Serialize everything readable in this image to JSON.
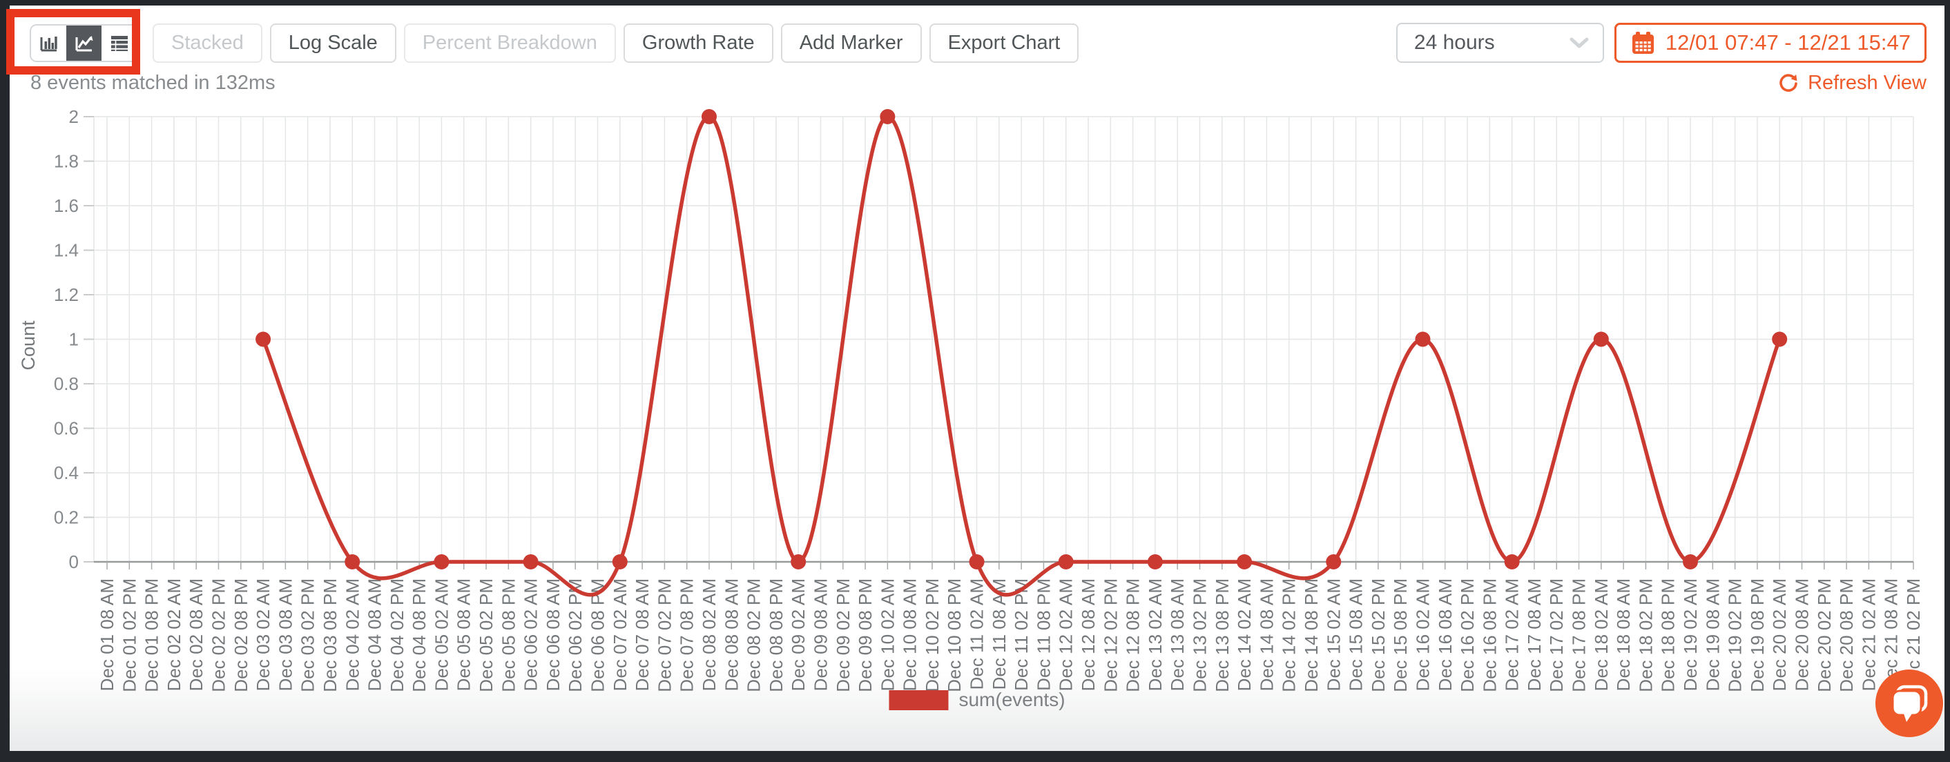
{
  "colors": {
    "accent_orange": "#ee5a29",
    "annotation_red": "#e8371d",
    "chart_red": "#cb3a31",
    "active_segment": "#54585d"
  },
  "toolbar": {
    "chart_type_buttons": [
      {
        "icon": "bar-chart-icon",
        "active": false
      },
      {
        "icon": "line-chart-icon",
        "active": true
      },
      {
        "icon": "table-icon",
        "active": false
      }
    ],
    "buttons": [
      {
        "label": "Stacked",
        "disabled": true
      },
      {
        "label": "Log Scale",
        "disabled": false
      },
      {
        "label": "Percent Breakdown",
        "disabled": true
      },
      {
        "label": "Growth Rate",
        "disabled": false
      },
      {
        "label": "Add Marker",
        "disabled": false
      },
      {
        "label": "Export Chart",
        "disabled": false
      }
    ],
    "time_range_select": {
      "value": "24 hours",
      "icon": "chevron-down-icon"
    },
    "date_range_button": {
      "label": "12/01 07:47 - 12/21 15:47",
      "icon": "calendar-icon"
    }
  },
  "status_bar": {
    "matched_text": "8 events matched in 132ms",
    "refresh_label": "Refresh View",
    "refresh_icon": "refresh-icon"
  },
  "chart_data": {
    "type": "line",
    "title": "",
    "xlabel": "",
    "ylabel": "Count",
    "ylim": [
      0,
      2
    ],
    "ytick_step": 0.2,
    "ytick_labels": [
      "0",
      "0.2",
      "0.4",
      "0.6",
      "0.8",
      "1",
      "1.2",
      "1.4",
      "1.6",
      "1.8",
      "2"
    ],
    "grid": true,
    "legend_position": "bottom",
    "categories": [
      "Dec 01 08 AM",
      "Dec 01 02 PM",
      "Dec 01 08 PM",
      "Dec 02 02 AM",
      "Dec 02 08 AM",
      "Dec 02 02 PM",
      "Dec 02 08 PM",
      "Dec 03 02 AM",
      "Dec 03 08 AM",
      "Dec 03 02 PM",
      "Dec 03 08 PM",
      "Dec 04 02 AM",
      "Dec 04 08 AM",
      "Dec 04 02 PM",
      "Dec 04 08 PM",
      "Dec 05 02 AM",
      "Dec 05 08 AM",
      "Dec 05 02 PM",
      "Dec 05 08 PM",
      "Dec 06 02 AM",
      "Dec 06 08 AM",
      "Dec 06 02 PM",
      "Dec 06 08 PM",
      "Dec 07 02 AM",
      "Dec 07 08 AM",
      "Dec 07 02 PM",
      "Dec 07 08 PM",
      "Dec 08 02 AM",
      "Dec 08 08 AM",
      "Dec 08 02 PM",
      "Dec 08 08 PM",
      "Dec 09 02 AM",
      "Dec 09 08 AM",
      "Dec 09 02 PM",
      "Dec 09 08 PM",
      "Dec 10 02 AM",
      "Dec 10 08 AM",
      "Dec 10 02 PM",
      "Dec 10 08 PM",
      "Dec 11 02 AM",
      "Dec 11 08 AM",
      "Dec 11 02 PM",
      "Dec 11 08 PM",
      "Dec 12 02 AM",
      "Dec 12 08 AM",
      "Dec 12 02 PM",
      "Dec 12 08 PM",
      "Dec 13 02 AM",
      "Dec 13 08 AM",
      "Dec 13 02 PM",
      "Dec 13 08 PM",
      "Dec 14 02 AM",
      "Dec 14 08 AM",
      "Dec 14 02 PM",
      "Dec 14 08 PM",
      "Dec 15 02 AM",
      "Dec 15 08 AM",
      "Dec 15 02 PM",
      "Dec 15 08 PM",
      "Dec 16 02 AM",
      "Dec 16 08 AM",
      "Dec 16 02 PM",
      "Dec 16 08 PM",
      "Dec 17 02 AM",
      "Dec 17 08 AM",
      "Dec 17 02 PM",
      "Dec 17 08 PM",
      "Dec 18 02 AM",
      "Dec 18 08 AM",
      "Dec 18 02 PM",
      "Dec 18 08 PM",
      "Dec 19 02 AM",
      "Dec 19 08 AM",
      "Dec 19 02 PM",
      "Dec 19 08 PM",
      "Dec 20 02 AM",
      "Dec 20 08 AM",
      "Dec 20 02 PM",
      "Dec 20 08 PM",
      "Dec 21 02 AM",
      "Dec 21 08 AM",
      "Dec 21 02 PM"
    ],
    "series": [
      {
        "name": "sum(events)",
        "color": "#cb3a31",
        "points": [
          [
            7,
            1
          ],
          [
            11,
            0
          ],
          [
            15,
            0
          ],
          [
            19,
            0
          ],
          [
            23,
            0
          ],
          [
            27,
            2
          ],
          [
            31,
            0
          ],
          [
            35,
            2
          ],
          [
            39,
            0
          ],
          [
            43,
            0
          ],
          [
            47,
            0
          ],
          [
            51,
            0
          ],
          [
            55,
            0
          ],
          [
            59,
            1
          ],
          [
            63,
            0
          ],
          [
            67,
            1
          ],
          [
            71,
            0
          ],
          [
            75,
            1
          ]
        ]
      }
    ],
    "legend": {
      "entries": [
        {
          "label": "sum(events)",
          "color": "#cb3a31"
        }
      ]
    }
  },
  "chat_widget": {
    "icon": "chat-bubble-icon"
  },
  "annotation": {
    "shape": "rectangle",
    "target": "chart-type-selector"
  }
}
